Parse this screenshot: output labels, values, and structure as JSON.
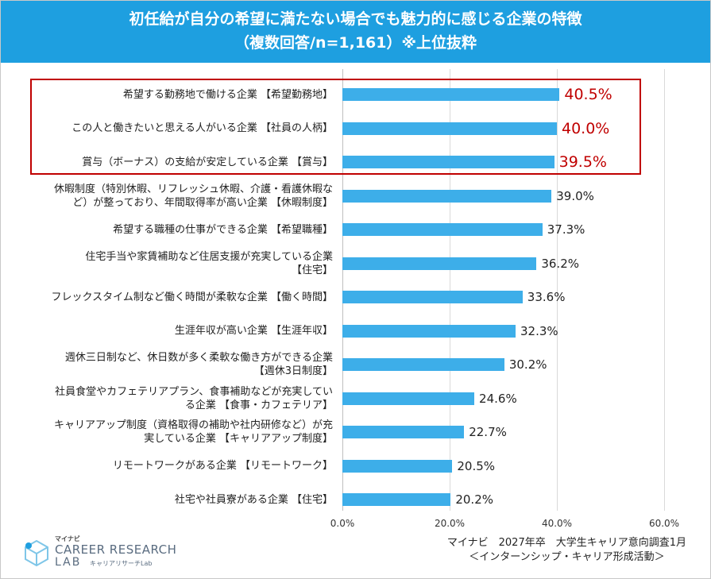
{
  "header": {
    "title_line1": "初任給が自分の希望に満たない場合でも魅力的に感じる企業の特徴",
    "title_line2": "（複数回答/n=1,161）※上位抜粋"
  },
  "chart_data": {
    "type": "bar",
    "orientation": "horizontal",
    "categories": [
      "希望する勤務地で働ける企業 【希望勤務地】",
      "この人と働きたいと思える人がいる企業 【社員の人柄】",
      "賞与（ボーナス）の支給が安定している企業 【賞与】",
      "休暇制度（特別休暇、リフレッシュ休暇、介護・看護休暇な\nど）が整っており、年間取得率が高い企業 【休暇制度】",
      "希望する職種の仕事ができる企業 【希望職種】",
      "住宅手当や家賃補助など住居支援が充実している企業\n【住宅】",
      "フレックスタイム制など働く時間が柔軟な企業 【働く時間】",
      "生涯年収が高い企業 【生涯年収】",
      "週休三日制など、休日数が多く柔軟な働き方ができる企業\n【週休3日制度】",
      "社員食堂やカフェテリアプラン、食事補助などが充実してい\nる企業 【食事・カフェテリア】",
      "キャリアアップ制度（資格取得の補助や社内研修など）が充\n実している企業 【キャリアアップ制度】",
      "リモートワークがある企業 【リモートワーク】",
      "社宅や社員寮がある企業 【住宅】"
    ],
    "values": [
      40.5,
      40.0,
      39.5,
      39.0,
      37.3,
      36.2,
      33.6,
      32.3,
      30.2,
      24.6,
      22.7,
      20.5,
      20.2
    ],
    "value_labels": [
      "40.5%",
      "40.0%",
      "39.5%",
      "39.0%",
      "37.3%",
      "36.2%",
      "33.6%",
      "32.3%",
      "30.2%",
      "24.6%",
      "22.7%",
      "20.5%",
      "20.2%"
    ],
    "highlighted": [
      0,
      1,
      2
    ],
    "xlim": [
      0,
      60
    ],
    "xticks": [
      "0.0%",
      "20.0%",
      "40.0%",
      "60.0%"
    ],
    "bar_color": "#3daee9",
    "highlight_color": "#c00000"
  },
  "logo": {
    "small": "マイナビ",
    "line1": "CAREER RESEARCH",
    "line2": "LAB",
    "jp": "キャリアリサーチLab"
  },
  "source": {
    "line1": "マイナビ　2027年卒　大学生キャリア意向調査1月",
    "line2": "＜インターンシップ・キャリア形成活動＞"
  }
}
